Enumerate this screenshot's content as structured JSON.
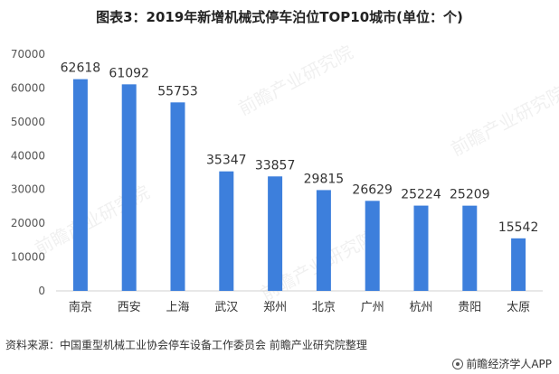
{
  "title": "图表3：2019年新增机械式停车泊位TOP10城市(单位：个)",
  "chart_data": {
    "type": "bar",
    "categories": [
      "南京",
      "西安",
      "上海",
      "武汉",
      "郑州",
      "北京",
      "广州",
      "杭州",
      "贵阳",
      "太原"
    ],
    "values": [
      62618,
      61092,
      55753,
      35347,
      33857,
      29815,
      26629,
      25224,
      25209,
      15542
    ],
    "ylim": [
      0,
      70000
    ],
    "yticks": [
      "0",
      "10000",
      "20000",
      "30000",
      "40000",
      "50000",
      "60000",
      "70000"
    ],
    "bar_color": "#3d7fdc",
    "grid": false,
    "data_labels": true
  },
  "source": "资料来源：中国重型机械工业协会停车设备工作委员会 前瞻产业研究院整理",
  "brand": "前瞻经济学人APP",
  "watermark": "前瞻产业研究院"
}
